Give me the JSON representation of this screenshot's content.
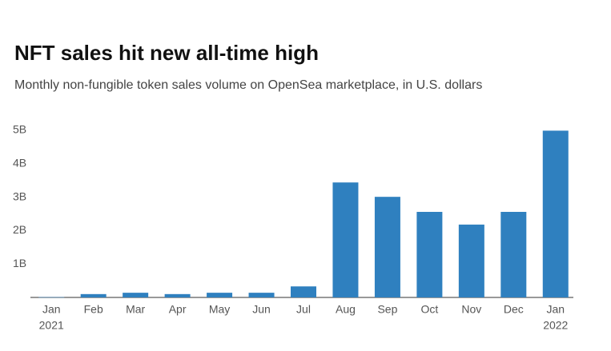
{
  "chart_data": {
    "type": "bar",
    "title": "NFT sales hit new all-time high",
    "subtitle": "Monthly non-fungible token sales volume on OpenSea marketplace, in U.S. dollars",
    "categories": [
      "Jan",
      "Feb",
      "Mar",
      "Apr",
      "May",
      "Jun",
      "Jul",
      "Aug",
      "Sep",
      "Oct",
      "Nov",
      "Dec",
      "Jan"
    ],
    "year_labels": [
      "2021",
      "2022"
    ],
    "values": [
      0.008,
      0.1,
      0.14,
      0.1,
      0.14,
      0.14,
      0.33,
      3.44,
      3.01,
      2.56,
      2.18,
      2.56,
      4.99
    ],
    "color": "#2f80bf",
    "ylim": [
      0,
      5
    ],
    "yticks": [
      {
        "value": 1,
        "label": "1B"
      },
      {
        "value": 2,
        "label": "2B"
      },
      {
        "value": 3,
        "label": "3B"
      },
      {
        "value": 4,
        "label": "4B"
      },
      {
        "value": 5,
        "label": "5B"
      }
    ],
    "grid": false
  }
}
